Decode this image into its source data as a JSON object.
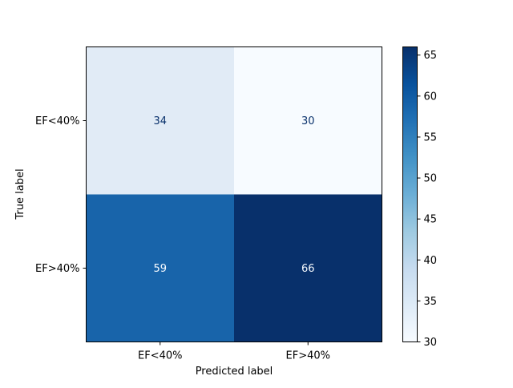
{
  "chart_data": {
    "type": "heatmap",
    "title": "",
    "xlabel": "Predicted label",
    "ylabel": "True label",
    "x_categories": [
      "EF<40%",
      "EF>40%"
    ],
    "y_categories": [
      "EF<40%",
      "EF>40%"
    ],
    "values": [
      [
        34,
        30
      ],
      [
        59,
        66
      ]
    ],
    "colormap": "Blues",
    "colorbar": {
      "range": [
        30,
        66
      ],
      "ticks": [
        30,
        35,
        40,
        45,
        50,
        55,
        60,
        65
      ],
      "tick_labels": [
        "30",
        "35",
        "40",
        "45",
        "50",
        "55",
        "60",
        "65"
      ]
    },
    "cell_colors": [
      [
        "#e1ebf6",
        "#f7fbff"
      ],
      [
        "#1864aa",
        "#08306b"
      ]
    ],
    "annotation_colors": {
      "dark_text": "#08306b",
      "light_text": "#f7fbff"
    },
    "grid": false
  }
}
